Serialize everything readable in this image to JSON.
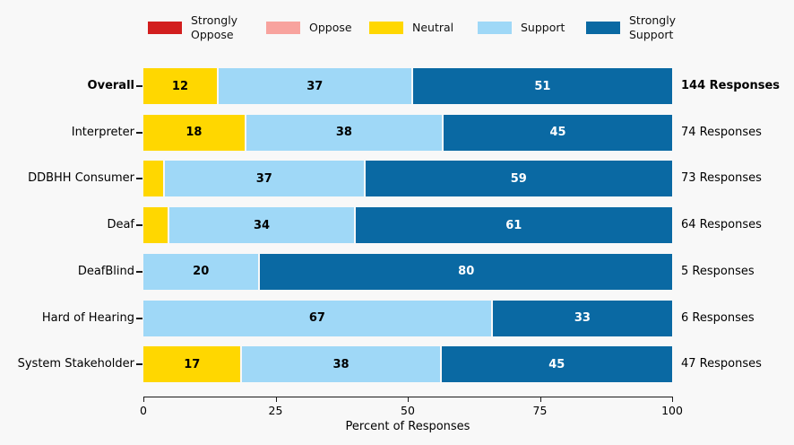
{
  "colors": {
    "background": "#f8f8f8",
    "axis": "#1a1a1a",
    "palette": {
      "Strongly Oppose": {
        "fill": "#d21e1e",
        "text": "#000000"
      },
      "Oppose": {
        "fill": "#f8a39e",
        "text": "#000000"
      },
      "Neutral": {
        "fill": "#ffd700",
        "text": "#000000"
      },
      "Support": {
        "fill": "#9fd8f7",
        "text": "#000000"
      },
      "Strongly Support": {
        "fill": "#0a69a3",
        "text": "#ffffff"
      }
    }
  },
  "legend": {
    "items": [
      {
        "name": "Strongly Oppose",
        "label": "Strongly\nOppose"
      },
      {
        "name": "Oppose",
        "label": "Oppose"
      },
      {
        "name": "Neutral",
        "label": "Neutral"
      },
      {
        "name": "Support",
        "label": "Support"
      },
      {
        "name": "Strongly Support",
        "label": "Strongly\nSupport"
      }
    ]
  },
  "chart_data": {
    "type": "bar",
    "variant": "horizontal_stacked_percent",
    "title": "",
    "xlabel": "Percent of Responses",
    "ylabel": "",
    "xlim": [
      0,
      100
    ],
    "xticks": [
      0,
      25,
      50,
      75,
      100
    ],
    "legend_position": "top",
    "series_order": [
      "Strongly Oppose",
      "Oppose",
      "Neutral",
      "Support",
      "Strongly Support"
    ],
    "rows": [
      {
        "category": "Overall",
        "bold": true,
        "responses": "144 Responses",
        "segments": [
          {
            "name": "Neutral",
            "value": 12,
            "show_label": true
          },
          {
            "name": "Support",
            "value": 37,
            "show_label": true
          },
          {
            "name": "Strongly Support",
            "value": 51,
            "show_label": true
          }
        ]
      },
      {
        "category": "Interpreter",
        "bold": false,
        "responses": "74 Responses",
        "segments": [
          {
            "name": "Neutral",
            "value": 18,
            "show_label": true
          },
          {
            "name": "Support",
            "value": 38,
            "show_label": true
          },
          {
            "name": "Strongly Support",
            "value": 45,
            "show_label": true
          }
        ]
      },
      {
        "category": "DDBHH Consumer",
        "bold": false,
        "responses": "73 Responses",
        "segments": [
          {
            "name": "Neutral",
            "value": 4,
            "show_label": false
          },
          {
            "name": "Support",
            "value": 37,
            "show_label": true
          },
          {
            "name": "Strongly Support",
            "value": 59,
            "show_label": true
          }
        ]
      },
      {
        "category": "Deaf",
        "bold": false,
        "responses": "64 Responses",
        "segments": [
          {
            "name": "Neutral",
            "value": 5,
            "show_label": false
          },
          {
            "name": "Support",
            "value": 34,
            "show_label": true
          },
          {
            "name": "Strongly Support",
            "value": 61,
            "show_label": true
          }
        ]
      },
      {
        "category": "DeafBlind",
        "bold": false,
        "responses": "5 Responses",
        "segments": [
          {
            "name": "Support",
            "value": 20,
            "show_label": true
          },
          {
            "name": "Strongly Support",
            "value": 80,
            "show_label": true
          }
        ]
      },
      {
        "category": "Hard of Hearing",
        "bold": false,
        "responses": "6 Responses",
        "segments": [
          {
            "name": "Support",
            "value": 67,
            "show_label": true
          },
          {
            "name": "Strongly Support",
            "value": 33,
            "show_label": true
          }
        ]
      },
      {
        "category": "System Stakeholder",
        "bold": false,
        "responses": "47 Responses",
        "segments": [
          {
            "name": "Neutral",
            "value": 17,
            "show_label": true
          },
          {
            "name": "Support",
            "value": 38,
            "show_label": true
          },
          {
            "name": "Strongly Support",
            "value": 45,
            "show_label": true
          }
        ]
      }
    ]
  }
}
